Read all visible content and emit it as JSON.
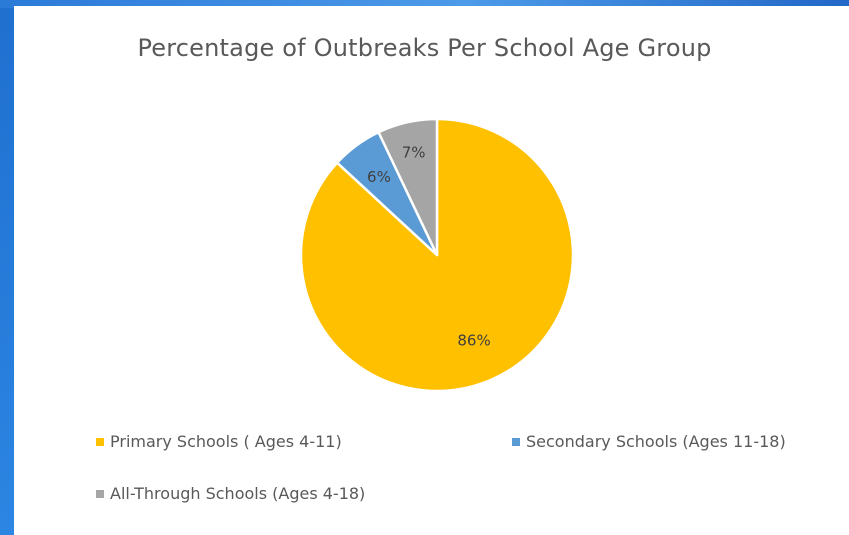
{
  "chart_data": {
    "type": "pie",
    "title": "Percentage of Outbreaks Per School Age Group",
    "slices": [
      {
        "label": "Primary Schools ( Ages 4-11)",
        "value": 86,
        "data_label": "86%",
        "color": "#FFC000"
      },
      {
        "label": "Secondary Schools (Ages 11-18)",
        "value": 6,
        "data_label": "6%",
        "color": "#5B9BD5"
      },
      {
        "label": "All-Through Schools (Ages 4-18)",
        "value": 7,
        "data_label": "7%",
        "color": "#A5A5A5"
      }
    ],
    "legend": {
      "placement": "bottom",
      "entries": [
        "Primary Schools ( Ages 4-11)",
        "Secondary Schools (Ages 11-18)",
        "All-Through Schools (Ages 4-18)"
      ]
    }
  }
}
